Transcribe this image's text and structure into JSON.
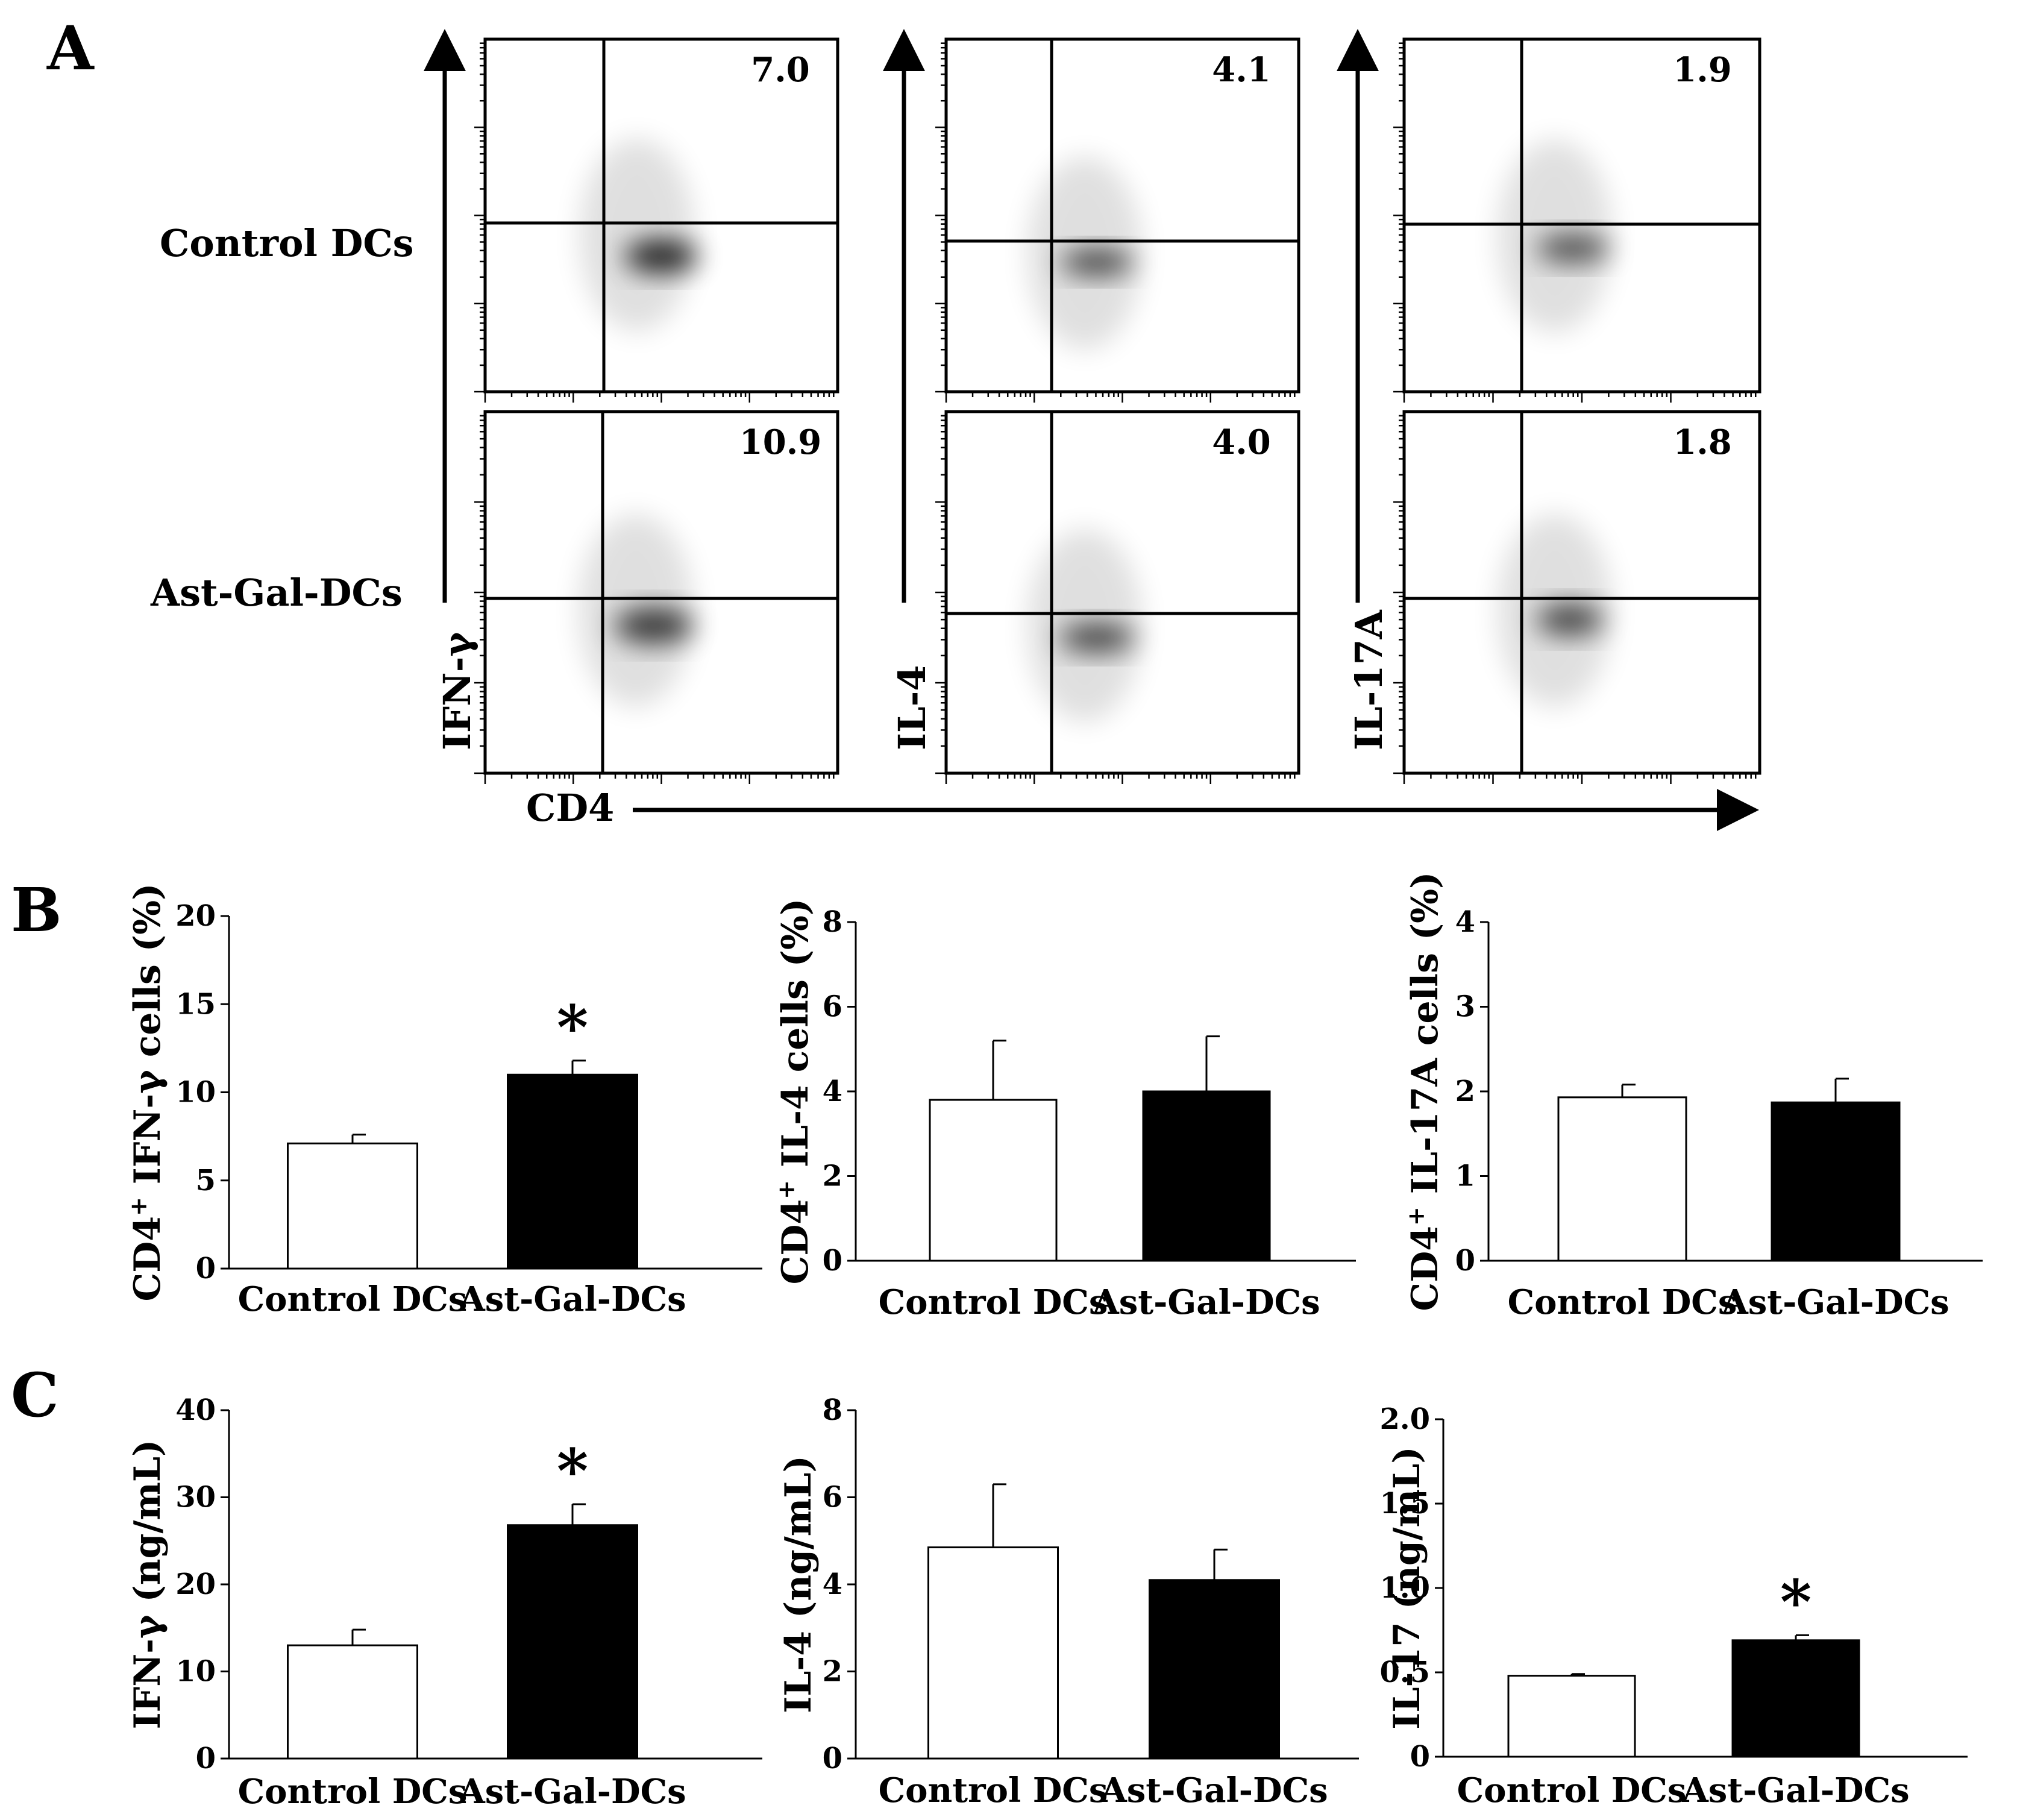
{
  "panels": {
    "A": "A",
    "B": "B",
    "C": "C"
  },
  "flow": {
    "row_labels": [
      "Control DCs",
      "Ast-Gal-DCs"
    ],
    "x_marker": "CD4",
    "y_markers": [
      "IFN-γ",
      "IL-4",
      "IL-17A"
    ],
    "quadrant_values": [
      [
        "7.0",
        "4.1",
        "1.9"
      ],
      [
        "10.9",
        "4.0",
        "1.8"
      ]
    ]
  },
  "colors": {
    "control": "#ffffff",
    "astgal": "#000000",
    "axis": "#000000"
  },
  "chart_data": [
    {
      "id": "B1",
      "type": "bar",
      "categories": [
        "Control DCs",
        "Ast-Gal-DCs"
      ],
      "values": [
        7.1,
        11.0
      ],
      "errors": [
        0.5,
        0.8
      ],
      "ylim": [
        0,
        20
      ],
      "yticks": [
        "0",
        "5",
        "10",
        "15",
        "20"
      ],
      "ylabel_pre": "CD4",
      "ylabel_sup": "+",
      "ylabel_post": " IFN-γ cells (%)",
      "significance": [
        "",
        "*"
      ]
    },
    {
      "id": "B2",
      "type": "bar",
      "categories": [
        "Control DCs",
        "Ast-Gal-DCs"
      ],
      "values": [
        3.8,
        4.0
      ],
      "errors": [
        1.4,
        1.3
      ],
      "ylim": [
        0,
        8
      ],
      "yticks": [
        "0",
        "2",
        "4",
        "6",
        "8"
      ],
      "ylabel_pre": "CD4",
      "ylabel_sup": "+",
      "ylabel_post": " IL-4 cells (%)",
      "significance": [
        "",
        ""
      ]
    },
    {
      "id": "B3",
      "type": "bar",
      "categories": [
        "Control DCs",
        "Ast-Gal-DCs"
      ],
      "values": [
        1.93,
        1.87
      ],
      "errors": [
        0.15,
        0.28
      ],
      "ylim": [
        0,
        4
      ],
      "yticks": [
        "0",
        "1",
        "2",
        "3",
        "4"
      ],
      "ylabel_pre": "CD4",
      "ylabel_sup": "+",
      "ylabel_post": " IL-17A cells (%)",
      "significance": [
        "",
        ""
      ]
    },
    {
      "id": "C1",
      "type": "bar",
      "categories": [
        "Control DCs",
        "Ast-Gal-DCs"
      ],
      "values": [
        13.0,
        26.8
      ],
      "errors": [
        1.8,
        2.4
      ],
      "ylim": [
        0,
        40
      ],
      "yticks": [
        "0",
        "10",
        "20",
        "30",
        "40"
      ],
      "ylabel_pre": "",
      "ylabel_sup": "",
      "ylabel_post": "IFN-γ (ng/mL)",
      "significance": [
        "",
        "*"
      ]
    },
    {
      "id": "C2",
      "type": "bar",
      "categories": [
        "Control DCs",
        "Ast-Gal-DCs"
      ],
      "values": [
        4.85,
        4.1
      ],
      "errors": [
        1.45,
        0.7
      ],
      "ylim": [
        0,
        8
      ],
      "yticks": [
        "0",
        "2",
        "4",
        "6",
        "8"
      ],
      "ylabel_pre": "",
      "ylabel_sup": "",
      "ylabel_post": "IL-4 (ng/mL)",
      "significance": [
        "",
        ""
      ]
    },
    {
      "id": "C3",
      "type": "bar",
      "categories": [
        "Control DCs",
        "Ast-Gal-DCs"
      ],
      "values": [
        0.48,
        0.69
      ],
      "errors": [
        0.01,
        0.03
      ],
      "ylim": [
        0,
        2
      ],
      "yticks": [
        "0",
        "0.5",
        "1.0",
        "1.5",
        "2.0"
      ],
      "ylabel_pre": "",
      "ylabel_sup": "",
      "ylabel_post": "IL-17 (ng/mL)",
      "significance": [
        "",
        "*"
      ]
    }
  ]
}
